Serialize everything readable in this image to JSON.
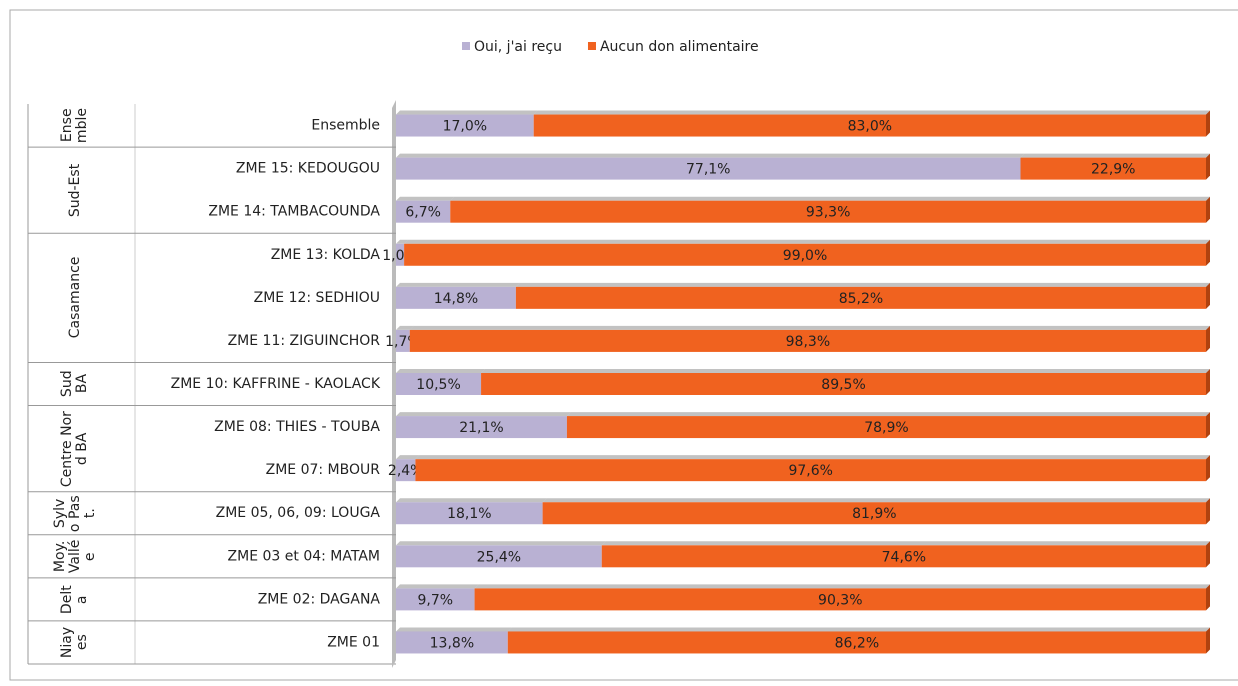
{
  "chart_data": {
    "type": "stacked-bar-horizontal",
    "categories": [
      "Ensemble",
      "ZME 15: KEDOUGOU",
      "ZME 14: TAMBACOUNDA",
      "ZME 13: KOLDA",
      "ZME 12: SEDHIOU",
      "ZME 11: ZIGUINCHOR",
      "ZME 10: KAFFRINE - KAOLACK",
      "ZME 08: THIES - TOUBA",
      "ZME 07: MBOUR",
      "ZME 05, 06, 09: LOUGA",
      "ZME 03 et 04: MATAM",
      "ZME 02: DAGANA",
      "ZME 01"
    ],
    "category_groups": [
      "Ensemble",
      "Sud-Est",
      null,
      "Casamance",
      null,
      null,
      "Sud BA",
      "Centre Nord BA",
      null,
      "Sylvo Past.",
      "Moy. Vallée",
      "Delta",
      "Niayes"
    ],
    "series": [
      {
        "name": "Oui, j'ai reçu",
        "color": "#b9b1d3",
        "values": [
          17.0,
          77.1,
          6.7,
          1.0,
          14.8,
          1.7,
          10.5,
          21.1,
          2.4,
          18.1,
          25.4,
          9.7,
          13.8
        ],
        "value_labels": [
          "17,0%",
          "77,1%",
          "6,7%",
          "1,0%",
          "14,8%",
          "1,7%",
          "10,5%",
          "21,1%",
          "2,4%",
          "18,1%",
          "25,4%",
          "9,7%",
          "13,8%"
        ]
      },
      {
        "name": "Aucun don alimentaire",
        "color": "#f0621f",
        "values": [
          83.0,
          22.9,
          93.3,
          99.0,
          85.2,
          98.3,
          89.5,
          78.9,
          97.6,
          81.9,
          74.6,
          90.3,
          86.2
        ],
        "value_labels": [
          "83,0%",
          "22,9%",
          "93,3%",
          "99,0%",
          "85,2%",
          "98,3%",
          "89,5%",
          "78,9%",
          "97,6%",
          "81,9%",
          "74,6%",
          "90,3%",
          "86,2%"
        ]
      }
    ],
    "xlim": [
      0,
      100
    ],
    "legend": "top"
  }
}
